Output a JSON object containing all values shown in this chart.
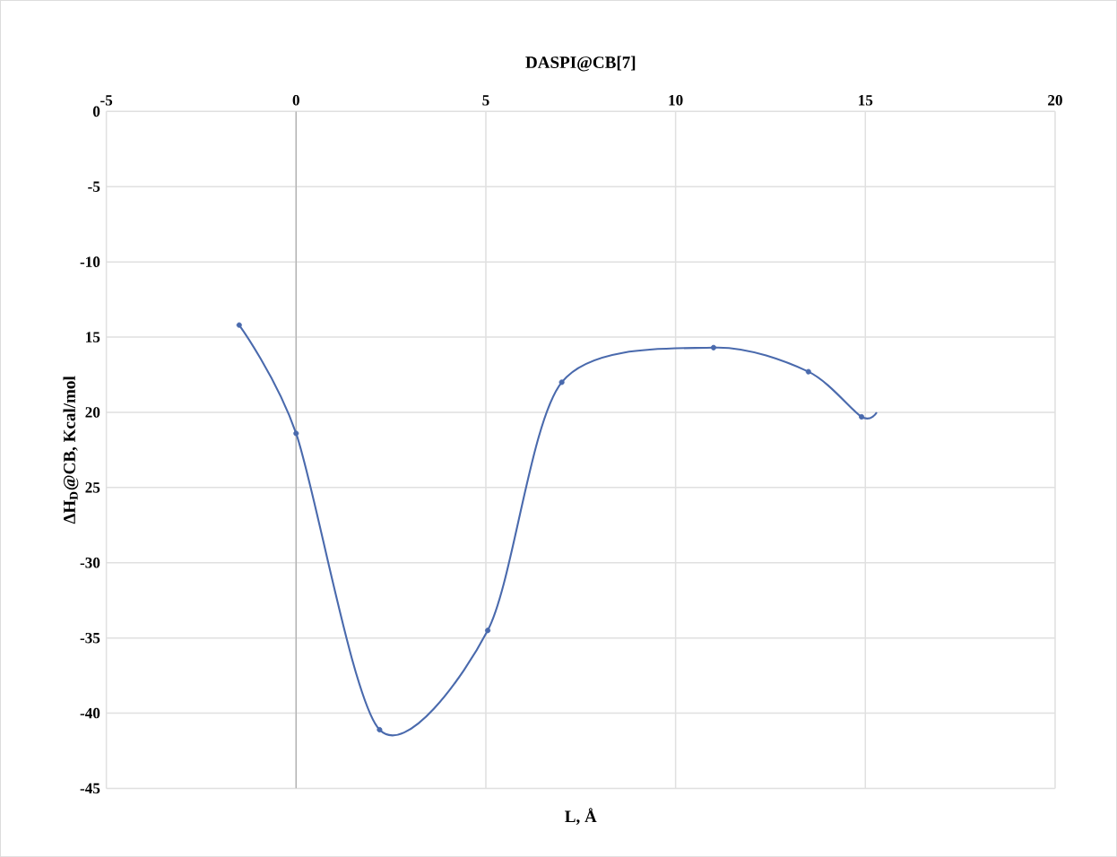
{
  "chart_data": {
    "type": "scatter",
    "title": "DASPI@CB[7]",
    "xlabel": "L, Å",
    "ylabel": "ΔH$_{D}$@CB,  Kcal/mol",
    "series": [
      {
        "type": "line",
        "color": "#4a6aad",
        "x": [
          -1.5,
          0,
          2.2,
          5.05,
          7,
          11,
          13.5,
          14.9,
          15.3
        ],
        "values": [
          -14.2,
          -21.4,
          -41.1,
          -34.5,
          -18,
          -15.7,
          -17.3,
          -20.3,
          -20
        ],
        "marker": "none"
      },
      {
        "color": "#4a6aad",
        "x": [
          -1.5,
          0,
          2.2,
          5.05,
          7,
          11,
          13.5,
          14.9
        ],
        "values": [
          -14.2,
          -21.4,
          -41.1,
          -34.5,
          -18,
          -15.7,
          -17.3,
          -20.3
        ],
        "marker": "circle"
      }
    ],
    "xlim": [
      -5,
      20
    ],
    "xticks": [
      -5,
      0,
      5,
      10,
      15,
      20
    ],
    "ylim": [
      -45,
      0
    ],
    "yticks": [
      0,
      -5,
      -10,
      {
        "value": -15,
        "label": "15"
      },
      {
        "value": -20,
        "label": "20"
      },
      {
        "value": -25,
        "label": "25"
      },
      -30,
      -35,
      -40,
      -45
    ],
    "grid": true
  }
}
